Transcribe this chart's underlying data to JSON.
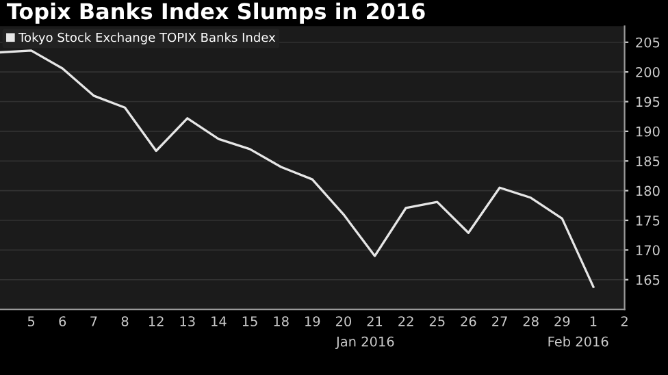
{
  "chart_data": {
    "type": "line",
    "title": "Topix Banks Index Slumps in 2016",
    "categories": [
      null,
      "5",
      "6",
      "7",
      "8",
      "12",
      "13",
      "14",
      "15",
      "18",
      "19",
      "20",
      "21",
      "22",
      "25",
      "26",
      "27",
      "28",
      "29",
      "1",
      "2"
    ],
    "series": [
      {
        "name": "Tokyo Stock Exchange TOPIX Banks Index",
        "color": "#e6e6e6",
        "values": [
          203.3,
          203.6,
          200.6,
          196.0,
          194.0,
          186.7,
          192.2,
          188.7,
          187.0,
          184.0,
          181.9,
          176.0,
          169.0,
          177.1,
          178.1,
          172.9,
          180.5,
          178.8,
          175.3,
          163.8,
          null
        ]
      }
    ],
    "ylim": [
      160,
      207.7
    ],
    "yticks": [
      165,
      170,
      175,
      180,
      185,
      190,
      195,
      200,
      205
    ],
    "annotations": [
      "Jan 2016",
      "Feb 2016"
    ],
    "grid": "y",
    "legend": "top left",
    "marker": "none",
    "line_style": "solid"
  }
}
